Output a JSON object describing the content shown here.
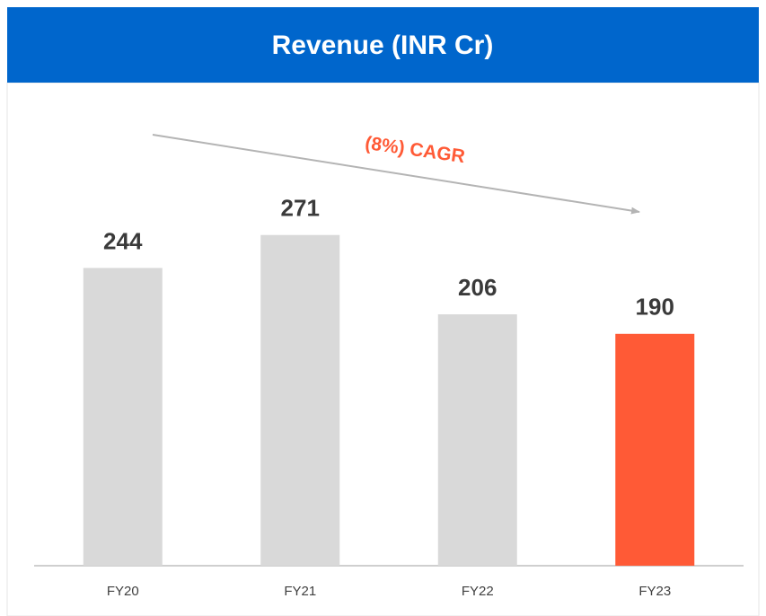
{
  "chart_data": {
    "type": "bar",
    "title": "Revenue (INR Cr)",
    "categories": [
      "FY20",
      "FY21",
      "FY22",
      "FY23"
    ],
    "values": [
      244,
      271,
      206,
      190
    ],
    "colors": [
      "#d9d9d9",
      "#d9d9d9",
      "#d9d9d9",
      "#ff5a36"
    ],
    "ylim": [
      0,
      390
    ],
    "annotation": "(8%) CAGR"
  }
}
